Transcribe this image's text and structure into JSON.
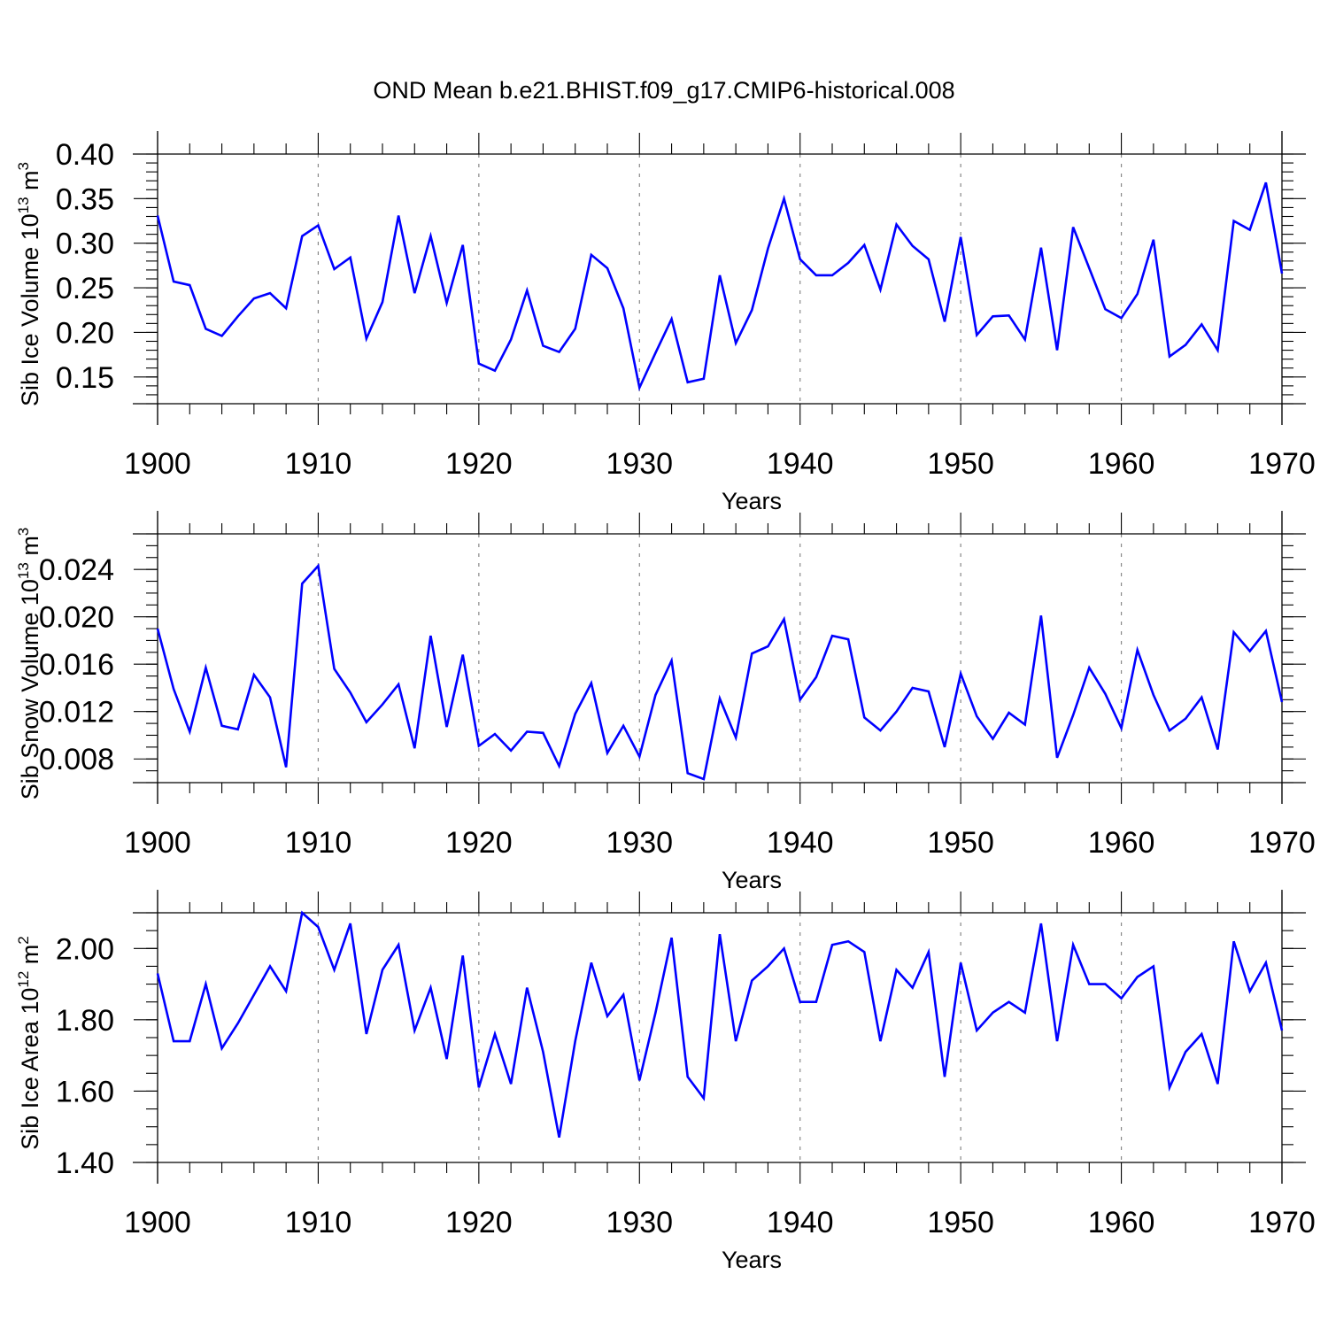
{
  "title": "OND Mean b.e21.BHIST.f09_g17.CMIP6-historical.008",
  "colors": {
    "line": "#0000ff",
    "axes": "#000000",
    "grid": "#888888"
  },
  "chart_data": [
    {
      "type": "line",
      "xlabel": "Years",
      "ylabel": {
        "prefix": "Sib Ice Volume 10",
        "exp": "13",
        "unit": " m",
        "unit_exp": "3"
      },
      "xlim": [
        1900,
        1970
      ],
      "ylim": [
        0.12,
        0.4
      ],
      "xticks": [
        "1900",
        "1910",
        "1920",
        "1930",
        "1940",
        "1950",
        "1960",
        "1970"
      ],
      "yticks": [
        "0.15",
        "0.20",
        "0.25",
        "0.30",
        "0.35",
        "0.40"
      ],
      "ytick_values": [
        0.15,
        0.2,
        0.25,
        0.3,
        0.35,
        0.4
      ],
      "yminor_step": 0.01,
      "x": [
        1900,
        1901,
        1902,
        1903,
        1904,
        1905,
        1906,
        1907,
        1908,
        1909,
        1910,
        1911,
        1912,
        1913,
        1914,
        1915,
        1916,
        1917,
        1918,
        1919,
        1920,
        1921,
        1922,
        1923,
        1924,
        1925,
        1926,
        1927,
        1928,
        1929,
        1930,
        1931,
        1932,
        1933,
        1934,
        1935,
        1936,
        1937,
        1938,
        1939,
        1940,
        1941,
        1942,
        1943,
        1944,
        1945,
        1946,
        1947,
        1948,
        1949,
        1950,
        1951,
        1952,
        1953,
        1954,
        1955,
        1956,
        1957,
        1958,
        1959,
        1960,
        1961,
        1962,
        1963,
        1964,
        1965,
        1966,
        1967,
        1968,
        1969,
        1970
      ],
      "values": [
        0.331,
        0.257,
        0.253,
        0.204,
        0.196,
        0.218,
        0.238,
        0.244,
        0.227,
        0.308,
        0.32,
        0.271,
        0.284,
        0.193,
        0.234,
        0.331,
        0.244,
        0.308,
        0.233,
        0.298,
        0.165,
        0.157,
        0.192,
        0.247,
        0.185,
        0.178,
        0.204,
        0.287,
        0.272,
        0.227,
        0.138,
        0.177,
        0.215,
        0.144,
        0.148,
        0.264,
        0.188,
        0.225,
        0.294,
        0.35,
        0.282,
        0.264,
        0.264,
        0.278,
        0.298,
        0.248,
        0.321,
        0.297,
        0.282,
        0.212,
        0.307,
        0.197,
        0.218,
        0.219,
        0.192,
        0.295,
        0.18,
        0.318,
        0.272,
        0.226,
        0.216,
        0.243,
        0.304,
        0.173,
        0.186,
        0.209,
        0.18,
        0.325,
        0.315,
        0.368,
        0.266
      ]
    },
    {
      "type": "line",
      "xlabel": "Years",
      "ylabel": {
        "prefix": "Sib Snow Volume 10",
        "exp": "13",
        "unit": " m",
        "unit_exp": "3"
      },
      "xlim": [
        1900,
        1970
      ],
      "ylim": [
        0.006,
        0.027
      ],
      "xticks": [
        "1900",
        "1910",
        "1920",
        "1930",
        "1940",
        "1950",
        "1960",
        "1970"
      ],
      "yticks": [
        "0.008",
        "0.012",
        "0.016",
        "0.020",
        "0.024"
      ],
      "ytick_values": [
        0.008,
        0.012,
        0.016,
        0.02,
        0.024
      ],
      "yminor_step": 0.001,
      "x": [
        1900,
        1901,
        1902,
        1903,
        1904,
        1905,
        1906,
        1907,
        1908,
        1909,
        1910,
        1911,
        1912,
        1913,
        1914,
        1915,
        1916,
        1917,
        1918,
        1919,
        1920,
        1921,
        1922,
        1923,
        1924,
        1925,
        1926,
        1927,
        1928,
        1929,
        1930,
        1931,
        1932,
        1933,
        1934,
        1935,
        1936,
        1937,
        1938,
        1939,
        1940,
        1941,
        1942,
        1943,
        1944,
        1945,
        1946,
        1947,
        1948,
        1949,
        1950,
        1951,
        1952,
        1953,
        1954,
        1955,
        1956,
        1957,
        1958,
        1959,
        1960,
        1961,
        1962,
        1963,
        1964,
        1965,
        1966,
        1967,
        1968,
        1969,
        1970
      ],
      "values": [
        0.019,
        0.0139,
        0.0103,
        0.0157,
        0.0108,
        0.0105,
        0.0151,
        0.0132,
        0.0073,
        0.0228,
        0.0243,
        0.0156,
        0.0136,
        0.0111,
        0.0126,
        0.0143,
        0.0089,
        0.0184,
        0.0107,
        0.0168,
        0.0091,
        0.0101,
        0.0087,
        0.0103,
        0.0102,
        0.0074,
        0.0118,
        0.0144,
        0.0085,
        0.0108,
        0.0082,
        0.0134,
        0.0163,
        0.0068,
        0.0063,
        0.0131,
        0.0098,
        0.0169,
        0.0175,
        0.0198,
        0.013,
        0.0149,
        0.0184,
        0.0181,
        0.0115,
        0.0104,
        0.012,
        0.014,
        0.0137,
        0.009,
        0.0152,
        0.0116,
        0.0097,
        0.0119,
        0.0109,
        0.0201,
        0.0081,
        0.0117,
        0.0157,
        0.0135,
        0.0106,
        0.0172,
        0.0134,
        0.0104,
        0.0114,
        0.0132,
        0.0088,
        0.0187,
        0.0171,
        0.0188,
        0.0128
      ]
    },
    {
      "type": "line",
      "xlabel": "Years",
      "ylabel": {
        "prefix": "Sib Ice Area 10",
        "exp": "12",
        "unit": " m",
        "unit_exp": "2"
      },
      "xlim": [
        1900,
        1970
      ],
      "ylim": [
        1.4,
        2.1
      ],
      "xticks": [
        "1900",
        "1910",
        "1920",
        "1930",
        "1940",
        "1950",
        "1960",
        "1970"
      ],
      "yticks": [
        "1.40",
        "1.60",
        "1.80",
        "2.00"
      ],
      "ytick_values": [
        1.4,
        1.6,
        1.8,
        2.0
      ],
      "yminor_step": 0.05,
      "x": [
        1900,
        1901,
        1902,
        1903,
        1904,
        1905,
        1906,
        1907,
        1908,
        1909,
        1910,
        1911,
        1912,
        1913,
        1914,
        1915,
        1916,
        1917,
        1918,
        1919,
        1920,
        1921,
        1922,
        1923,
        1924,
        1925,
        1926,
        1927,
        1928,
        1929,
        1930,
        1931,
        1932,
        1933,
        1934,
        1935,
        1936,
        1937,
        1938,
        1939,
        1940,
        1941,
        1942,
        1943,
        1944,
        1945,
        1946,
        1947,
        1948,
        1949,
        1950,
        1951,
        1952,
        1953,
        1954,
        1955,
        1956,
        1957,
        1958,
        1959,
        1960,
        1961,
        1962,
        1963,
        1964,
        1965,
        1966,
        1967,
        1968,
        1969,
        1970
      ],
      "values": [
        1.93,
        1.74,
        1.74,
        1.9,
        1.72,
        1.79,
        1.87,
        1.95,
        1.88,
        2.1,
        2.06,
        1.94,
        2.07,
        1.76,
        1.94,
        2.01,
        1.77,
        1.89,
        1.69,
        1.98,
        1.61,
        1.76,
        1.62,
        1.89,
        1.71,
        1.47,
        1.74,
        1.96,
        1.81,
        1.87,
        1.63,
        1.82,
        2.03,
        1.64,
        1.58,
        2.04,
        1.74,
        1.91,
        1.95,
        2.0,
        1.85,
        1.85,
        2.01,
        2.02,
        1.99,
        1.74,
        1.94,
        1.89,
        1.99,
        1.64,
        1.96,
        1.77,
        1.82,
        1.85,
        1.82,
        2.07,
        1.74,
        2.01,
        1.9,
        1.9,
        1.86,
        1.92,
        1.95,
        1.61,
        1.71,
        1.76,
        1.62,
        2.02,
        1.88,
        1.96,
        1.77
      ]
    }
  ]
}
